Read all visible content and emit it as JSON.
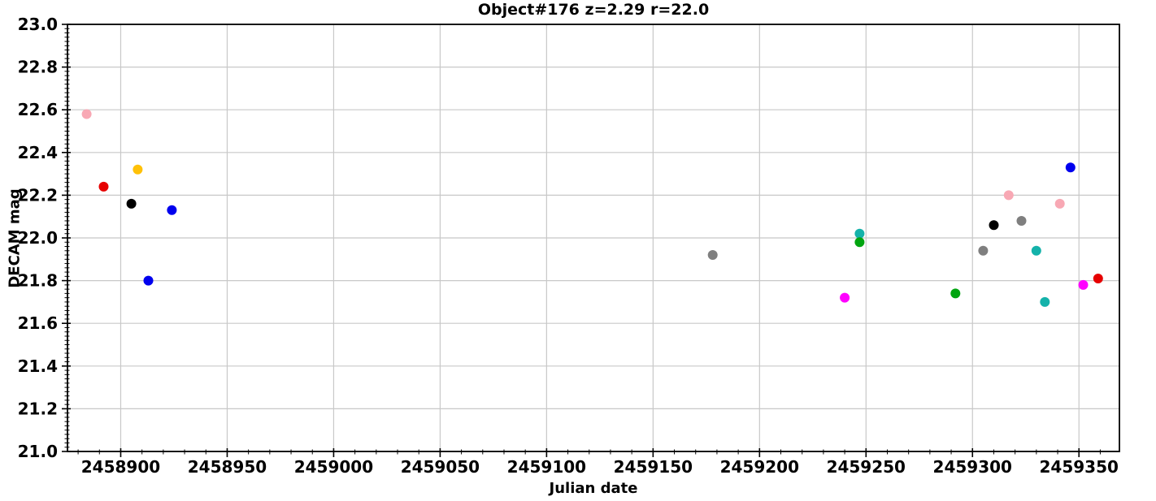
{
  "chart_data": {
    "type": "scatter",
    "title": "Object#176 z=2.29 r=22.0",
    "xlabel": "Julian date",
    "ylabel": "DECAM mag",
    "xlim": [
      2458875,
      2459369
    ],
    "ylim": [
      21.0,
      23.0
    ],
    "xticks": [
      2458900,
      2458950,
      2459000,
      2459050,
      2459100,
      2459150,
      2459200,
      2459250,
      2459300,
      2459350
    ],
    "yticks": [
      21.0,
      21.2,
      21.4,
      21.6,
      21.8,
      22.0,
      22.2,
      22.4,
      22.6,
      22.8,
      23.0
    ],
    "x_minor_step": 10,
    "y_minor_step": 0.02,
    "grid": true,
    "legend_position": "none",
    "marker": "circle",
    "marker_radius_px": 6,
    "series": [
      {
        "name": "pink",
        "color": "#f8a8b4",
        "points": [
          [
            2458884,
            22.58
          ],
          [
            2459317,
            22.2
          ],
          [
            2459341,
            22.16
          ]
        ]
      },
      {
        "name": "red",
        "color": "#e60000",
        "points": [
          [
            2458892,
            22.24
          ],
          [
            2459359,
            21.81
          ]
        ]
      },
      {
        "name": "gold",
        "color": "#ffc107",
        "points": [
          [
            2458908,
            22.32
          ]
        ]
      },
      {
        "name": "black",
        "color": "#000000",
        "points": [
          [
            2458905,
            22.16
          ],
          [
            2459310,
            22.06
          ]
        ]
      },
      {
        "name": "blue",
        "color": "#0000ee",
        "points": [
          [
            2458913,
            21.8
          ],
          [
            2458924,
            22.13
          ],
          [
            2459346,
            22.33
          ]
        ]
      },
      {
        "name": "gray",
        "color": "#7f7f7f",
        "points": [
          [
            2459178,
            21.92
          ],
          [
            2459305,
            21.94
          ],
          [
            2459323,
            22.08
          ]
        ]
      },
      {
        "name": "magenta",
        "color": "#ff00ff",
        "points": [
          [
            2459240,
            21.72
          ],
          [
            2459352,
            21.78
          ]
        ]
      },
      {
        "name": "teal",
        "color": "#14b2aa",
        "points": [
          [
            2459247,
            22.02
          ],
          [
            2459330,
            21.94
          ],
          [
            2459334,
            21.7
          ]
        ]
      },
      {
        "name": "green",
        "color": "#00a510",
        "points": [
          [
            2459247,
            21.98
          ],
          [
            2459292,
            21.74
          ]
        ]
      }
    ]
  },
  "style_colors": {
    "grid": "#c8c8c8",
    "spine": "#000000",
    "tick": "#000000",
    "background": "#ffffff"
  }
}
